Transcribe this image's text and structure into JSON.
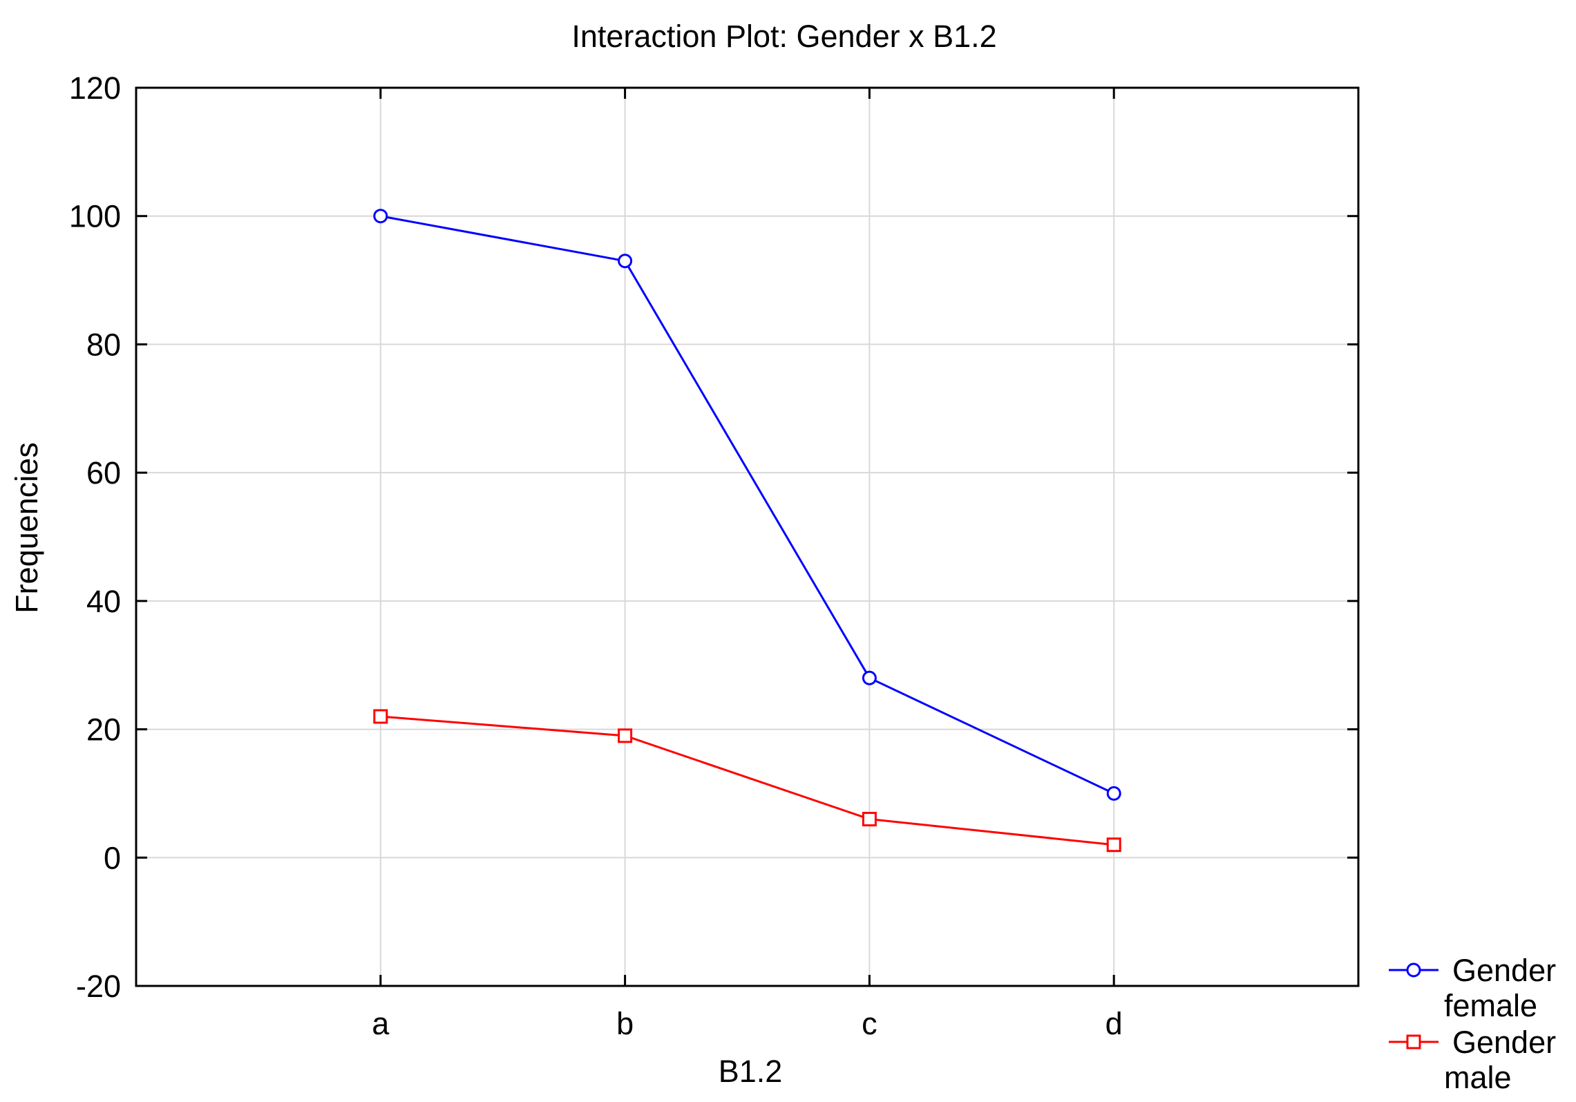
{
  "chart_data": {
    "type": "line",
    "title": "Interaction Plot: Gender x B1.2",
    "xlabel": "B1.2",
    "ylabel": "Frequencies",
    "categories": [
      "a",
      "b",
      "c",
      "d"
    ],
    "ylim": [
      -20,
      120
    ],
    "yticks": [
      "120",
      "100",
      "80",
      "60",
      "40",
      "20",
      "0",
      "-20"
    ],
    "grid": true,
    "legend_position": "bottom-right, outside plot",
    "series": [
      {
        "legend_line1": "Gender",
        "legend_line2": "female",
        "values": [
          100,
          93,
          28,
          10
        ],
        "color": "#0000ff",
        "marker": "circle"
      },
      {
        "legend_line1": "Gender",
        "legend_line2": "male",
        "values": [
          22,
          19,
          6,
          2
        ],
        "color": "#ff0000",
        "marker": "square"
      }
    ]
  }
}
